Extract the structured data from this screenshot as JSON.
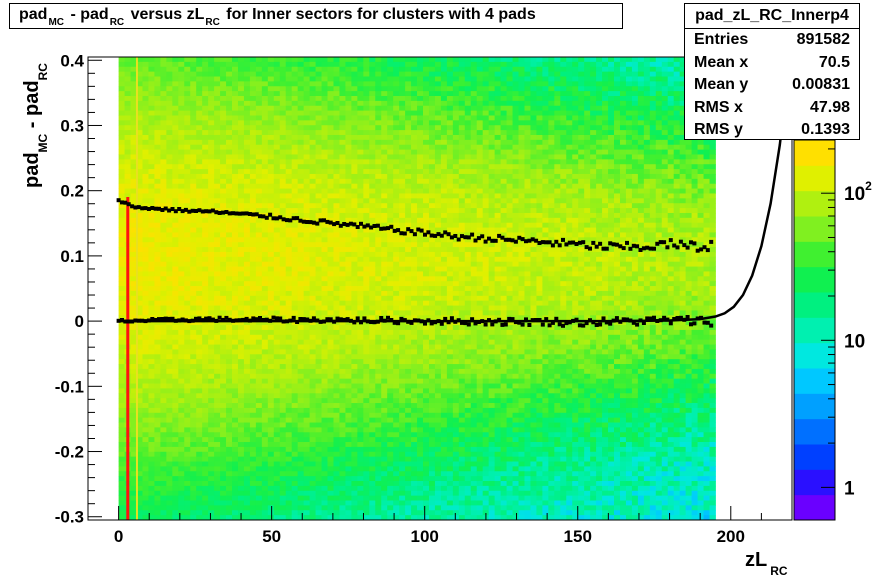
{
  "title": {
    "parts": [
      {
        "t": "pad",
        "sub": "MC"
      },
      {
        "t": " - pad",
        "sub": "RC"
      },
      {
        "t": " versus zL",
        "sub": "RC"
      },
      {
        "t": " for Inner sectors for clusters with 4 pads",
        "sub": ""
      }
    ]
  },
  "stats": {
    "name": "pad_zL_RC_Innerp4",
    "rows": [
      {
        "label": "Entries",
        "value": "891582"
      },
      {
        "label": "Mean x",
        "value": "70.5"
      },
      {
        "label": "Mean y",
        "value": "0.00831"
      },
      {
        "label": "RMS x",
        "value": "47.98"
      },
      {
        "label": "RMS y",
        "value": "0.1393"
      }
    ]
  },
  "chart_data": {
    "type": "heatmap",
    "xlabel": {
      "main": "zL",
      "sub": "RC"
    },
    "ylabel": {
      "main1": "pad",
      "sub1": "MC",
      "main2": " - pad",
      "sub2": "RC"
    },
    "xlim": [
      -10,
      220
    ],
    "ylim": [
      -0.305,
      0.405
    ],
    "x_ticks": [
      0,
      50,
      100,
      150,
      200
    ],
    "y_ticks": [
      -0.3,
      -0.2,
      -0.1,
      0,
      0.1,
      0.2,
      0.3,
      0.4
    ],
    "y_tick_labels": [
      "-0.3",
      "-0.2",
      "-0.1",
      "0",
      "0.1",
      "0.2",
      "0.3",
      "0.4"
    ],
    "colorbar": {
      "scale": "log",
      "labels": [
        {
          "value": 1,
          "text": "1"
        },
        {
          "value": 10,
          "text": "10"
        },
        {
          "value": 100,
          "text": "10",
          "sup": "2"
        }
      ],
      "colors": [
        "#6a00ff",
        "#2a10ff",
        "#0040ff",
        "#0070ff",
        "#00a0ff",
        "#00c8ff",
        "#00e8e0",
        "#00f0b0",
        "#00f080",
        "#10f050",
        "#40f030",
        "#80f020",
        "#b0f010",
        "#e0f000",
        "#ffe000"
      ]
    },
    "data_region_x": [
      0,
      195
    ],
    "mean_series": {
      "name": "mean",
      "x": [
        0,
        10,
        20,
        30,
        40,
        50,
        60,
        70,
        80,
        90,
        100,
        110,
        120,
        130,
        140,
        150,
        160,
        170,
        180,
        190,
        195
      ],
      "y": [
        0.0,
        0.001,
        0.002,
        0.003,
        0.002,
        0.002,
        0.002,
        0.002,
        0.001,
        0.001,
        0.0,
        0.0,
        -0.001,
        -0.001,
        -0.001,
        -0.002,
        -0.001,
        0.0,
        0.001,
        0.0,
        0.0
      ]
    },
    "rms_series": {
      "name": "rms",
      "x": [
        0,
        5,
        10,
        20,
        30,
        40,
        50,
        60,
        70,
        80,
        90,
        100,
        110,
        120,
        130,
        140,
        150,
        160,
        170,
        180,
        190,
        194
      ],
      "y": [
        0.185,
        0.175,
        0.173,
        0.17,
        0.168,
        0.164,
        0.16,
        0.155,
        0.15,
        0.145,
        0.14,
        0.135,
        0.13,
        0.127,
        0.124,
        0.121,
        0.117,
        0.114,
        0.113,
        0.118,
        0.113,
        0.118
      ]
    },
    "fit_curve": {
      "x": [
        0,
        20,
        40,
        60,
        80,
        100,
        120,
        140,
        160,
        180,
        190,
        195,
        198,
        201,
        204,
        207,
        210,
        213,
        216,
        218
      ],
      "y": [
        0,
        0,
        0,
        0,
        0,
        0,
        0,
        0,
        0,
        0.001,
        0.003,
        0.007,
        0.012,
        0.022,
        0.04,
        0.07,
        0.115,
        0.18,
        0.27,
        0.35
      ]
    },
    "red_line_x": 3,
    "yellow_line_x": 6
  }
}
